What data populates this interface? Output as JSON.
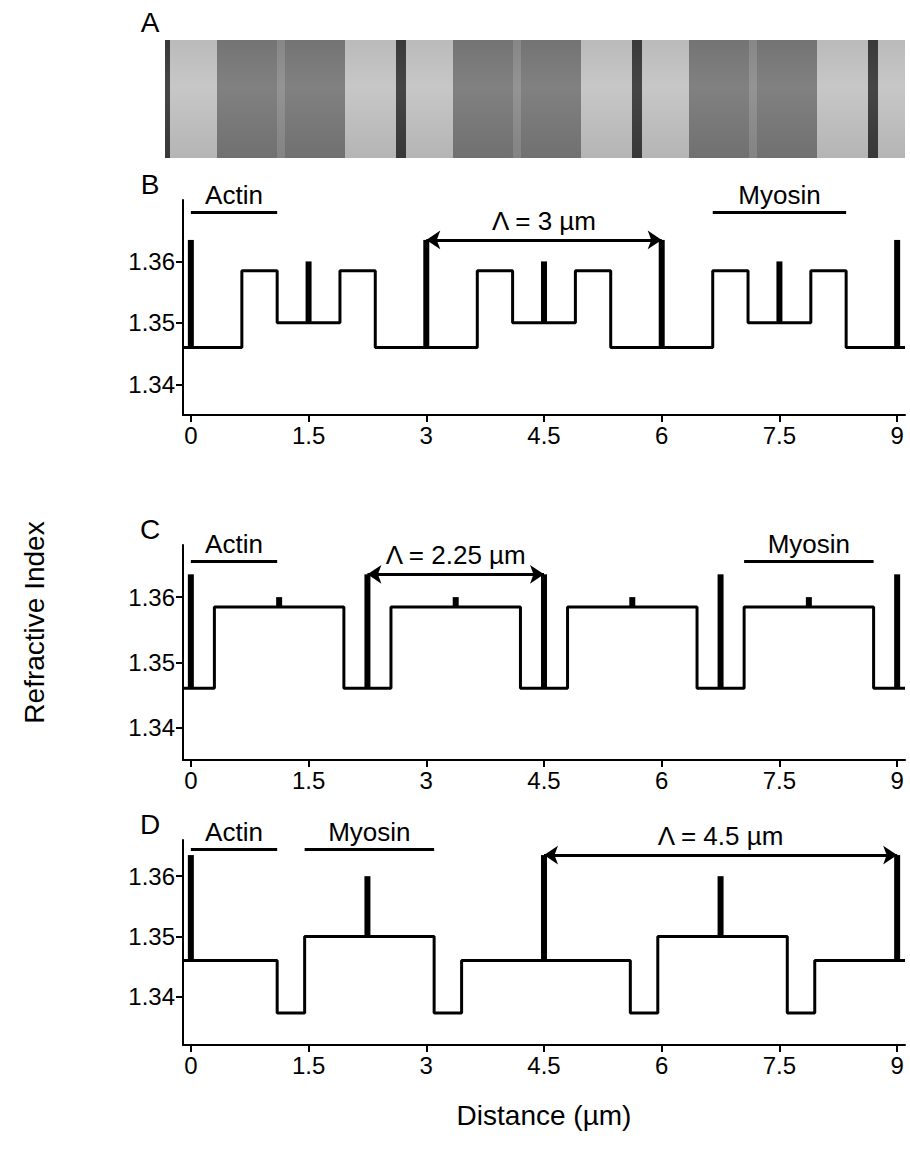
{
  "figure": {
    "ylabel": "Refractive Index",
    "xlabel": "Distance (µm)",
    "image_panel": {
      "label": "A"
    }
  },
  "chart_data": [
    {
      "label": "B",
      "type": "line",
      "color": "#000000",
      "grid": false,
      "xlim": [
        -0.1,
        9.1
      ],
      "xticks": [
        0,
        1.5,
        3,
        4.5,
        6,
        7.5,
        9
      ],
      "ylim": [
        1.335,
        1.37
      ],
      "yticks": [
        1.34,
        1.35,
        1.36
      ],
      "x": [
        -0.1,
        0.65,
        0.65,
        1.1,
        1.1,
        1.9,
        1.9,
        2.35,
        2.35,
        3.65,
        3.65,
        4.1,
        4.1,
        4.9,
        4.9,
        5.35,
        5.35,
        6.65,
        6.65,
        7.1,
        7.1,
        7.9,
        7.9,
        8.35,
        8.35,
        9.1
      ],
      "values": [
        1.346,
        1.346,
        1.3585,
        1.3585,
        1.35,
        1.35,
        1.3585,
        1.3585,
        1.346,
        1.346,
        1.3585,
        1.3585,
        1.35,
        1.35,
        1.3585,
        1.3585,
        1.346,
        1.346,
        1.3585,
        1.3585,
        1.35,
        1.35,
        1.3585,
        1.3585,
        1.346,
        1.346
      ],
      "spikes": {
        "x": [
          0,
          1.5,
          3,
          4.5,
          6,
          7.5,
          9
        ],
        "from": [
          1.346,
          1.35,
          1.346,
          1.35,
          1.346,
          1.35,
          1.346
        ],
        "to": [
          1.3635,
          1.36,
          1.3635,
          1.36,
          1.3635,
          1.36,
          1.3635
        ]
      },
      "span_labels": [
        {
          "text": "Actin",
          "x": [
            0,
            1.1
          ],
          "y": 1.368
        },
        {
          "text": "Myosin",
          "x": [
            6.65,
            8.35
          ],
          "y": 1.368
        }
      ],
      "arrows": [
        {
          "text": "Λ = 3 µm",
          "x": [
            3,
            6
          ],
          "y": 1.3635
        }
      ]
    },
    {
      "label": "C",
      "type": "line",
      "color": "#000000",
      "grid": false,
      "xlim": [
        -0.1,
        9.1
      ],
      "xticks": [
        0,
        1.5,
        3,
        4.5,
        6,
        7.5,
        9
      ],
      "ylim": [
        1.335,
        1.368
      ],
      "yticks": [
        1.34,
        1.35,
        1.36
      ],
      "x": [
        -0.1,
        0.3,
        0.3,
        1.95,
        1.95,
        2.55,
        2.55,
        4.2,
        4.2,
        4.8,
        4.8,
        6.45,
        6.45,
        7.05,
        7.05,
        8.7,
        8.7,
        9.1
      ],
      "values": [
        1.346,
        1.346,
        1.3585,
        1.3585,
        1.346,
        1.346,
        1.3585,
        1.3585,
        1.346,
        1.346,
        1.3585,
        1.3585,
        1.346,
        1.346,
        1.3585,
        1.3585,
        1.346,
        1.346
      ],
      "spikes": {
        "x": [
          0,
          1.125,
          2.25,
          3.375,
          4.5,
          5.625,
          6.75,
          7.875,
          9
        ],
        "from": [
          1.346,
          1.3585,
          1.346,
          1.3585,
          1.346,
          1.3585,
          1.346,
          1.3585,
          1.346
        ],
        "to": [
          1.3635,
          1.36,
          1.3635,
          1.36,
          1.3635,
          1.36,
          1.3635,
          1.36,
          1.3635
        ]
      },
      "span_labels": [
        {
          "text": "Actin",
          "x": [
            0,
            1.1
          ],
          "y": 1.3655
        },
        {
          "text": "Myosin",
          "x": [
            7.05,
            8.7
          ],
          "y": 1.3655
        }
      ],
      "arrows": [
        {
          "text": "Λ = 2.25 µm",
          "x": [
            2.25,
            4.5
          ],
          "y": 1.3635
        }
      ]
    },
    {
      "label": "D",
      "type": "line",
      "color": "#000000",
      "grid": false,
      "xlim": [
        -0.1,
        9.1
      ],
      "xticks": [
        0,
        1.5,
        3,
        4.5,
        6,
        7.5,
        9
      ],
      "ylim": [
        1.332,
        1.366
      ],
      "yticks": [
        1.34,
        1.35,
        1.36
      ],
      "x": [
        -0.1,
        1.1,
        1.1,
        1.45,
        1.45,
        3.1,
        3.1,
        3.45,
        3.45,
        5.6,
        5.6,
        5.95,
        5.95,
        7.6,
        7.6,
        7.95,
        7.95,
        9.1
      ],
      "values": [
        1.346,
        1.346,
        1.3373,
        1.3373,
        1.35,
        1.35,
        1.3373,
        1.3373,
        1.346,
        1.346,
        1.3373,
        1.3373,
        1.35,
        1.35,
        1.3373,
        1.3373,
        1.346,
        1.346
      ],
      "spikes": {
        "x": [
          0,
          2.25,
          4.5,
          6.75,
          9
        ],
        "from": [
          1.346,
          1.35,
          1.346,
          1.35,
          1.346
        ],
        "to": [
          1.3635,
          1.36,
          1.3635,
          1.36,
          1.3635
        ]
      },
      "span_labels": [
        {
          "text": "Actin",
          "x": [
            0,
            1.1
          ],
          "y": 1.3645
        },
        {
          "text": "Myosin",
          "x": [
            1.45,
            3.1
          ],
          "y": 1.3645
        }
      ],
      "arrows": [
        {
          "text": "Λ = 4.5 µm",
          "x": [
            4.5,
            9
          ],
          "y": 1.3635
        }
      ]
    }
  ]
}
